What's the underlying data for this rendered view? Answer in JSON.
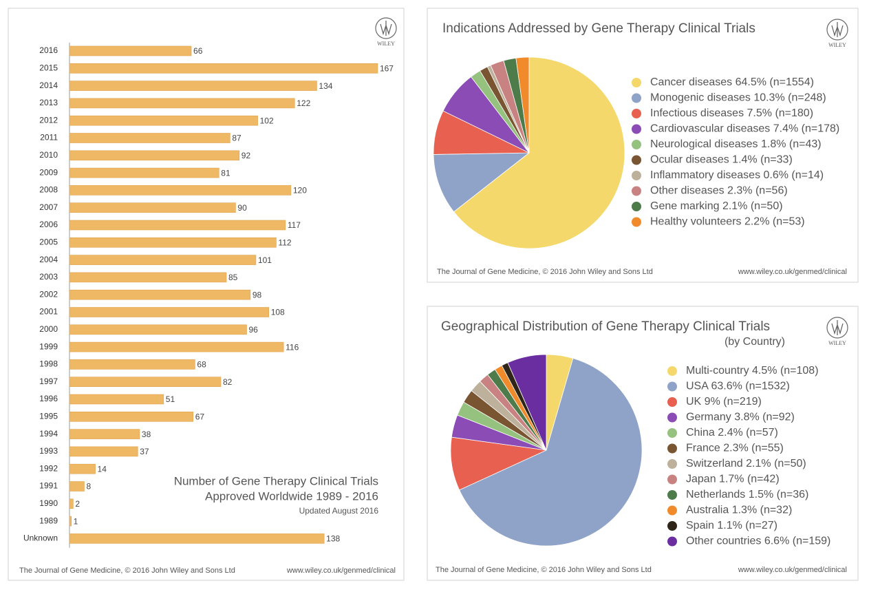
{
  "chart_data": [
    {
      "type": "bar",
      "orientation": "horizontal",
      "title": "Number of Gene Therapy Clinical Trials",
      "subtitle": "Approved Worldwide 1989 - 2016",
      "note": "Updated August 2016",
      "source": "The Journal of Gene Medicine, © 2016 John Wiley and Sons Ltd",
      "url": "www.wiley.co.uk/genmed/clinical",
      "logo": "WILEY",
      "categories": [
        "2016",
        "2015",
        "2014",
        "2013",
        "2012",
        "2011",
        "2010",
        "2009",
        "2008",
        "2007",
        "2006",
        "2005",
        "2004",
        "2003",
        "2002",
        "2001",
        "2000",
        "1999",
        "1998",
        "1997",
        "1996",
        "1995",
        "1994",
        "1993",
        "1992",
        "1991",
        "1990",
        "1989",
        "Unknown"
      ],
      "values": [
        66,
        167,
        134,
        122,
        102,
        87,
        92,
        81,
        120,
        90,
        117,
        112,
        101,
        85,
        98,
        108,
        96,
        116,
        68,
        82,
        51,
        67,
        38,
        37,
        14,
        8,
        2,
        1,
        138
      ],
      "color": "#efb865",
      "xlim": [
        0,
        170
      ]
    },
    {
      "type": "pie",
      "title": "Indications Addressed by Gene Therapy Clinical Trials",
      "source": "The Journal of Gene Medicine, © 2016 John Wiley and Sons Ltd",
      "url": "www.wiley.co.uk/genmed/clinical",
      "logo": "WILEY",
      "categories": [
        "Cancer diseases 64.5% (n=1554)",
        "Monogenic diseases 10.3% (n=248)",
        "Infectious diseases  7.5% (n=180)",
        "Cardiovascular diseases 7.4% (n=178)",
        "Neurological diseases 1.8% (n=43)",
        "Ocular diseases 1.4% (n=33)",
        "Inflammatory diseases 0.6% (n=14)",
        "Other diseases 2.3% (n=56)",
        "Gene marking 2.1% (n=50)",
        "Healthy volunteers 2.2% (n=53)"
      ],
      "values": [
        64.5,
        10.3,
        7.5,
        7.4,
        1.8,
        1.4,
        0.6,
        2.3,
        2.1,
        2.2
      ],
      "colors": [
        "#f5d86c",
        "#8fa3c9",
        "#e8604f",
        "#8c4cb6",
        "#95c27f",
        "#7a5531",
        "#bdb19b",
        "#c98282",
        "#4e7b4a",
        "#f08a2b"
      ]
    },
    {
      "type": "pie",
      "title": "Geographical Distribution of Gene Therapy Clinical Trials",
      "subtitle": "(by Country)",
      "source": "The Journal of Gene Medicine, © 2016 John Wiley and Sons Ltd",
      "url": "www.wiley.co.uk/genmed/clinical",
      "logo": "WILEY",
      "categories": [
        "Multi-country 4.5% (n=108)",
        "USA 63.6% (n=1532)",
        "UK 9% (n=219)",
        "Germany 3.8% (n=92)",
        "China 2.4% (n=57)",
        "France 2.3% (n=55)",
        "Switzerland 2.1% (n=50)",
        "Japan 1.7% (n=42)",
        "Netherlands 1.5% (n=36)",
        "Australia 1.3% (n=32)",
        "Spain 1.1% (n=27)",
        "Other countries 6.6% (n=159)"
      ],
      "values": [
        4.5,
        63.6,
        9,
        3.8,
        2.4,
        2.3,
        2.1,
        1.7,
        1.5,
        1.3,
        1.1,
        6.6
      ],
      "colors": [
        "#f5d86c",
        "#8fa3c9",
        "#e8604f",
        "#8c4cb6",
        "#95c27f",
        "#7a5531",
        "#bdb19b",
        "#c98282",
        "#4e7b4a",
        "#f08a2b",
        "#2f2519",
        "#6b2ea1"
      ]
    }
  ]
}
